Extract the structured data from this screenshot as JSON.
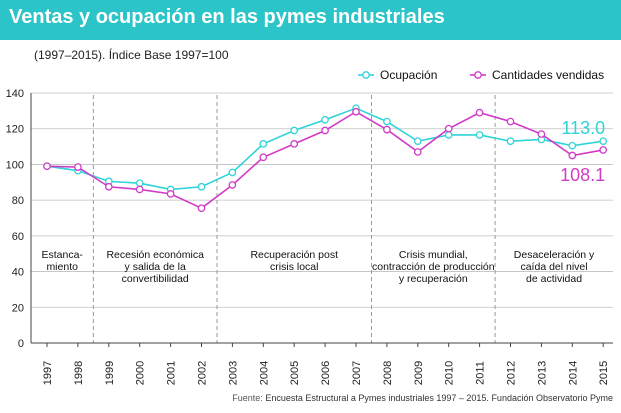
{
  "header": {
    "title": "Ventas y ocupación en las pymes industriales"
  },
  "subtitle": "(1997–2015). Índice Base 1997=100",
  "source": {
    "label": "Fuente:",
    "text": "Encuesta Estructural a Pymes industriales 1997 – 2015. Fundación Observatorio Pyme"
  },
  "colors": {
    "accent": "#2bc4c8",
    "ocupacion": "#2fd3d8",
    "ventas": "#d23bc8",
    "grid": "#bfbfbf"
  },
  "chart_data": {
    "type": "line",
    "title": "Ventas y ocupación en las pymes industriales",
    "subtitle": "(1997–2015). Índice Base 1997=100",
    "x": [
      "1997",
      "1998",
      "1999",
      "2000",
      "2001",
      "2002",
      "2003",
      "2004",
      "2005",
      "2006",
      "2007",
      "2008",
      "2009",
      "2010",
      "2011",
      "2012",
      "2013",
      "2014",
      "2015"
    ],
    "series": [
      {
        "name": "Ocupación",
        "color": "#2fd3d8",
        "values": [
          99,
          96.5,
          90.5,
          89.5,
          86,
          87.5,
          95.5,
          111.5,
          119,
          125,
          131.5,
          124,
          113,
          116.5,
          116.5,
          113,
          114,
          110.5,
          113
        ]
      },
      {
        "name": "Cantidades vendidas",
        "color": "#d23bc8",
        "values": [
          99,
          98.5,
          87.5,
          86,
          83.5,
          75.5,
          88.5,
          104,
          111.5,
          119,
          129.5,
          119.5,
          107,
          120,
          129,
          124,
          117,
          105,
          108.1
        ]
      }
    ],
    "end_labels": [
      "113.0",
      "108.1"
    ],
    "ylim": [
      0,
      140
    ],
    "yticks": [
      "0",
      "20",
      "40",
      "60",
      "80",
      "100",
      "120",
      "140"
    ],
    "periods": [
      {
        "lines": [
          "Estanca-",
          "miento"
        ],
        "from": 0,
        "to": 1
      },
      {
        "lines": [
          "Recesión económica",
          "y salida de la",
          "convertibilidad"
        ],
        "from": 1,
        "to": 5
      },
      {
        "lines": [
          "Recuperación post",
          "crisis local"
        ],
        "from": 5,
        "to": 10
      },
      {
        "lines": [
          "Crisis mundial,",
          "contracción de producción",
          "y recuperación"
        ],
        "from": 10,
        "to": 14
      },
      {
        "lines": [
          "Desaceleración y",
          "caída del nivel",
          "de actividad"
        ],
        "from": 14,
        "to": 18
      }
    ],
    "legend": "top-right"
  }
}
